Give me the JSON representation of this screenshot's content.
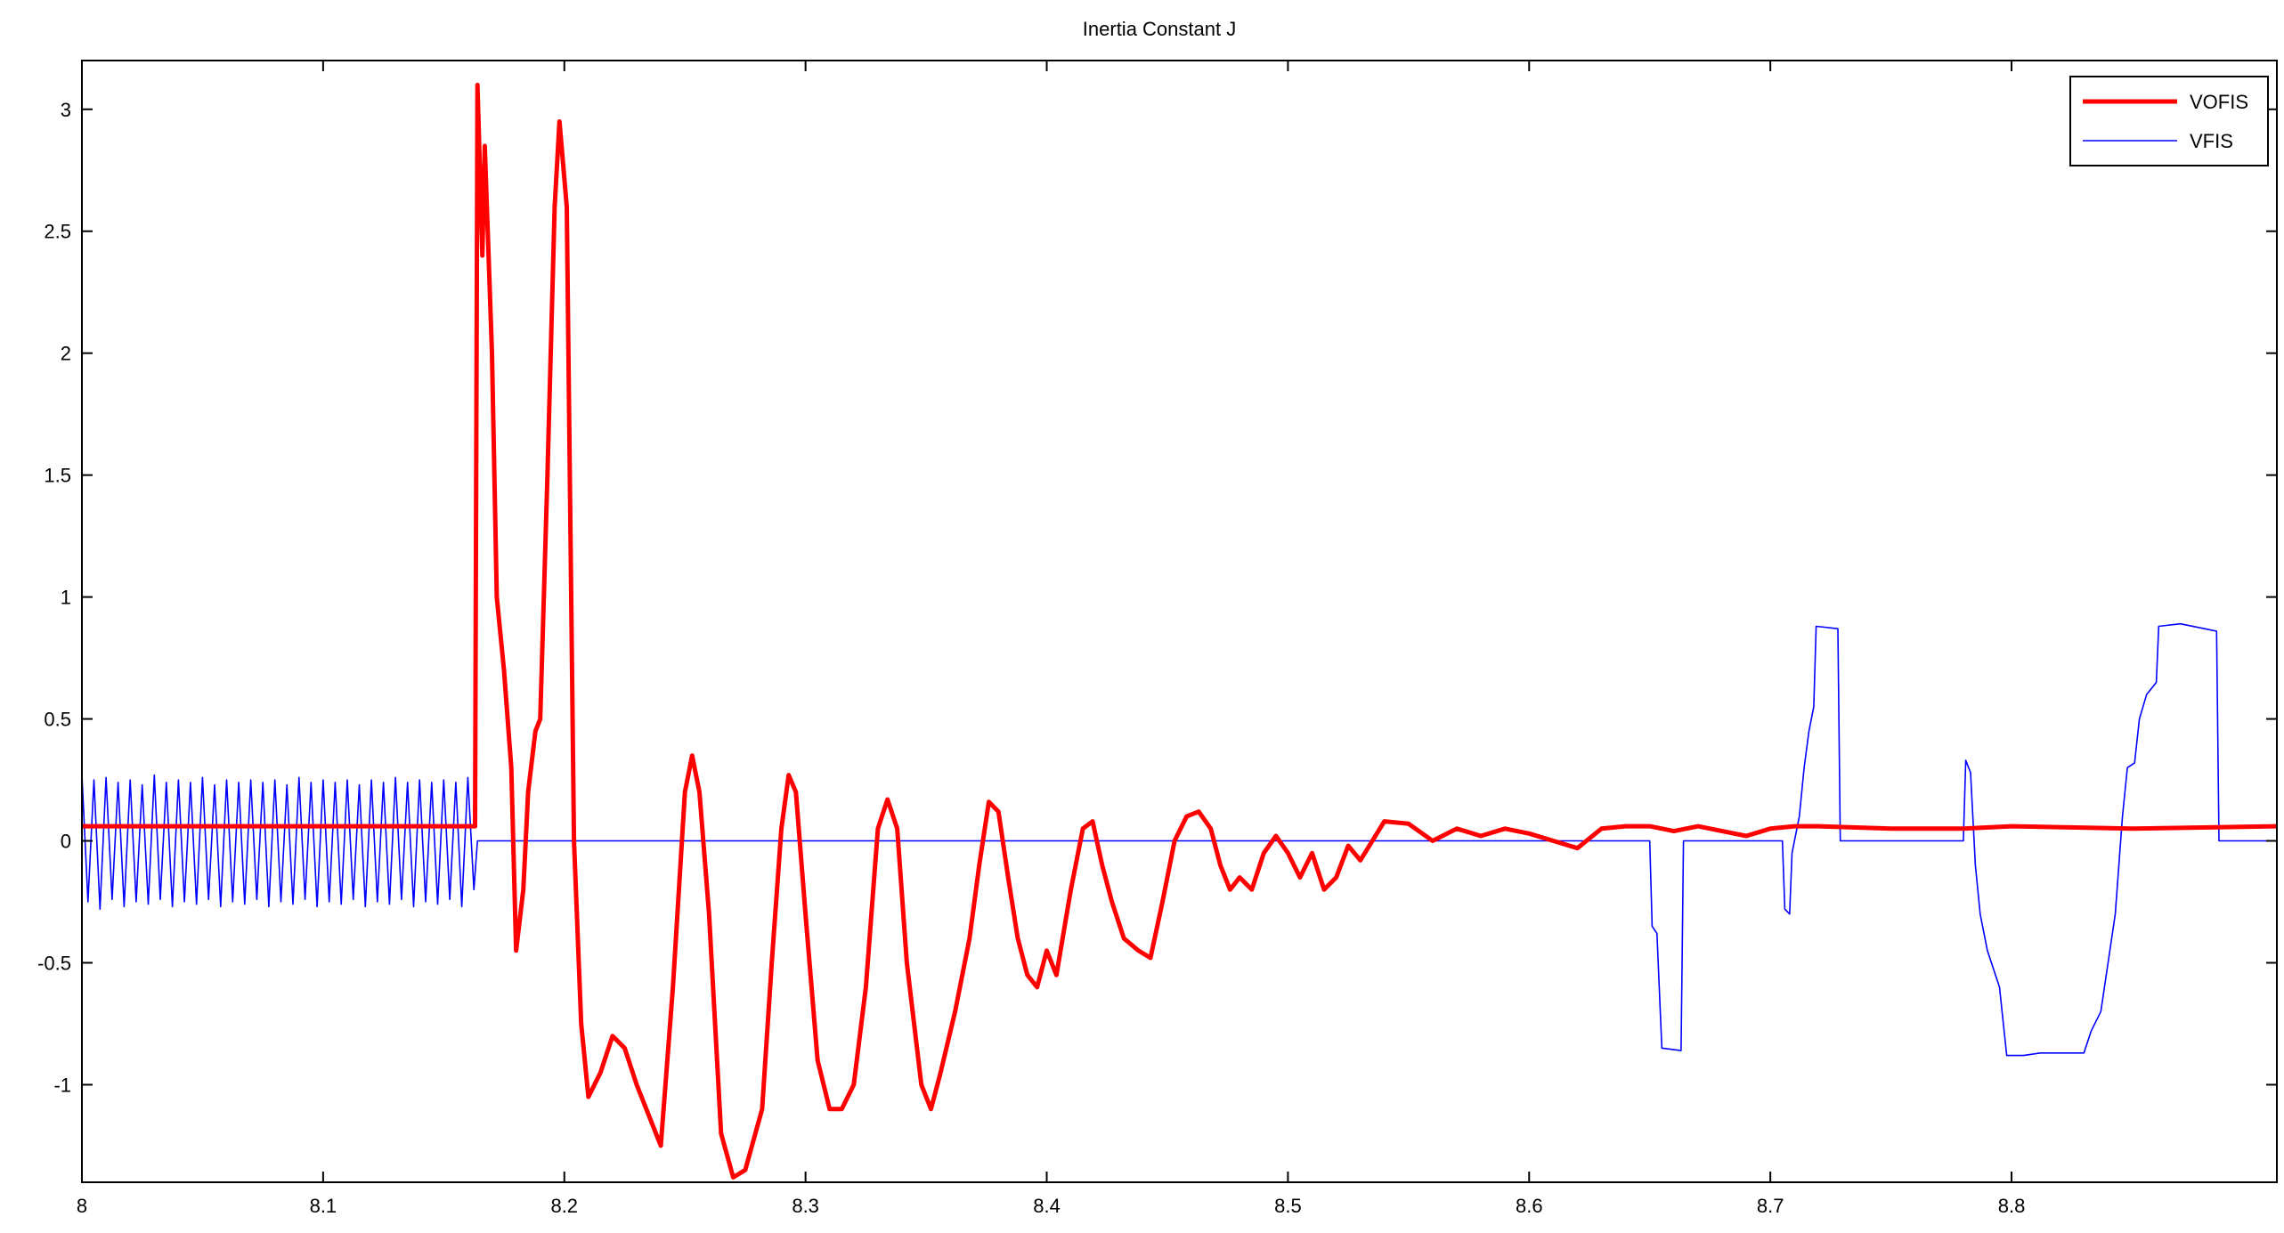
{
  "chart_data": {
    "type": "line",
    "title": "Inertia Constant J",
    "xlabel": "",
    "ylabel": "",
    "xlim": [
      8.0,
      8.91
    ],
    "ylim": [
      -1.4,
      3.2
    ],
    "grid": false,
    "legend_position": "top-right",
    "x_ticks": [
      8.0,
      8.1,
      8.2,
      8.3,
      8.4,
      8.5,
      8.6,
      8.7,
      8.8
    ],
    "x_tick_labels": [
      "8",
      "8.1",
      "8.2",
      "8.3",
      "8.4",
      "8.5",
      "8.6",
      "8.7",
      "8.8"
    ],
    "y_ticks": [
      -1,
      -0.5,
      0,
      0.5,
      1,
      1.5,
      2,
      2.5,
      3
    ],
    "y_tick_labels": [
      "-1",
      "-0.5",
      "0",
      "0.5",
      "1",
      "1.5",
      "2",
      "2.5",
      "3"
    ],
    "series": [
      {
        "name": "VOFIS",
        "color": "#ff0000",
        "points": [
          [
            8.0,
            0.06
          ],
          [
            8.163,
            0.06
          ],
          [
            8.164,
            3.1
          ],
          [
            8.166,
            2.4
          ],
          [
            8.167,
            2.85
          ],
          [
            8.17,
            2.0
          ],
          [
            8.172,
            1.0
          ],
          [
            8.175,
            0.7
          ],
          [
            8.178,
            0.3
          ],
          [
            8.18,
            -0.45
          ],
          [
            8.183,
            -0.2
          ],
          [
            8.185,
            0.2
          ],
          [
            8.188,
            0.45
          ],
          [
            8.19,
            0.5
          ],
          [
            8.193,
            1.5
          ],
          [
            8.196,
            2.6
          ],
          [
            8.198,
            2.95
          ],
          [
            8.201,
            2.6
          ],
          [
            8.204,
            0.0
          ],
          [
            8.207,
            -0.75
          ],
          [
            8.21,
            -1.05
          ],
          [
            8.215,
            -0.95
          ],
          [
            8.22,
            -0.8
          ],
          [
            8.225,
            -0.85
          ],
          [
            8.23,
            -1.0
          ],
          [
            8.24,
            -1.25
          ],
          [
            8.245,
            -0.6
          ],
          [
            8.25,
            0.2
          ],
          [
            8.253,
            0.35
          ],
          [
            8.256,
            0.2
          ],
          [
            8.26,
            -0.3
          ],
          [
            8.265,
            -1.2
          ],
          [
            8.27,
            -1.38
          ],
          [
            8.275,
            -1.35
          ],
          [
            8.282,
            -1.1
          ],
          [
            8.286,
            -0.5
          ],
          [
            8.29,
            0.05
          ],
          [
            8.293,
            0.27
          ],
          [
            8.296,
            0.2
          ],
          [
            8.3,
            -0.3
          ],
          [
            8.305,
            -0.9
          ],
          [
            8.31,
            -1.1
          ],
          [
            8.315,
            -1.1
          ],
          [
            8.32,
            -1.0
          ],
          [
            8.325,
            -0.6
          ],
          [
            8.33,
            0.05
          ],
          [
            8.334,
            0.17
          ],
          [
            8.338,
            0.05
          ],
          [
            8.342,
            -0.5
          ],
          [
            8.348,
            -1.0
          ],
          [
            8.352,
            -1.1
          ],
          [
            8.356,
            -0.95
          ],
          [
            8.362,
            -0.7
          ],
          [
            8.368,
            -0.4
          ],
          [
            8.372,
            -0.1
          ],
          [
            8.376,
            0.16
          ],
          [
            8.38,
            0.12
          ],
          [
            8.384,
            -0.15
          ],
          [
            8.388,
            -0.4
          ],
          [
            8.392,
            -0.55
          ],
          [
            8.396,
            -0.6
          ],
          [
            8.4,
            -0.45
          ],
          [
            8.404,
            -0.55
          ],
          [
            8.41,
            -0.2
          ],
          [
            8.415,
            0.05
          ],
          [
            8.419,
            0.08
          ],
          [
            8.423,
            -0.1
          ],
          [
            8.427,
            -0.25
          ],
          [
            8.432,
            -0.4
          ],
          [
            8.438,
            -0.45
          ],
          [
            8.443,
            -0.48
          ],
          [
            8.448,
            -0.25
          ],
          [
            8.453,
            0.0
          ],
          [
            8.458,
            0.1
          ],
          [
            8.463,
            0.12
          ],
          [
            8.468,
            0.05
          ],
          [
            8.472,
            -0.1
          ],
          [
            8.476,
            -0.2
          ],
          [
            8.48,
            -0.15
          ],
          [
            8.485,
            -0.2
          ],
          [
            8.49,
            -0.05
          ],
          [
            8.495,
            0.02
          ],
          [
            8.5,
            -0.05
          ],
          [
            8.505,
            -0.15
          ],
          [
            8.51,
            -0.05
          ],
          [
            8.515,
            -0.2
          ],
          [
            8.52,
            -0.15
          ],
          [
            8.525,
            -0.02
          ],
          [
            8.53,
            -0.08
          ],
          [
            8.54,
            0.08
          ],
          [
            8.55,
            0.07
          ],
          [
            8.56,
            0.0
          ],
          [
            8.57,
            0.05
          ],
          [
            8.58,
            0.02
          ],
          [
            8.59,
            0.05
          ],
          [
            8.6,
            0.03
          ],
          [
            8.61,
            0.0
          ],
          [
            8.62,
            -0.03
          ],
          [
            8.63,
            0.05
          ],
          [
            8.64,
            0.06
          ],
          [
            8.65,
            0.06
          ],
          [
            8.66,
            0.04
          ],
          [
            8.67,
            0.06
          ],
          [
            8.68,
            0.04
          ],
          [
            8.69,
            0.02
          ],
          [
            8.7,
            0.05
          ],
          [
            8.71,
            0.06
          ],
          [
            8.72,
            0.06
          ],
          [
            8.75,
            0.05
          ],
          [
            8.78,
            0.05
          ],
          [
            8.8,
            0.06
          ],
          [
            8.85,
            0.05
          ],
          [
            8.91,
            0.06
          ]
        ]
      },
      {
        "name": "VFIS",
        "color": "#0000ff",
        "points": [
          [
            8.0,
            0.27
          ],
          [
            8.0025,
            -0.25
          ],
          [
            8.005,
            0.25
          ],
          [
            8.0075,
            -0.28
          ],
          [
            8.01,
            0.26
          ],
          [
            8.0125,
            -0.24
          ],
          [
            8.015,
            0.24
          ],
          [
            8.0175,
            -0.27
          ],
          [
            8.02,
            0.25
          ],
          [
            8.0225,
            -0.25
          ],
          [
            8.025,
            0.23
          ],
          [
            8.0275,
            -0.26
          ],
          [
            8.03,
            0.27
          ],
          [
            8.0325,
            -0.24
          ],
          [
            8.035,
            0.24
          ],
          [
            8.0375,
            -0.27
          ],
          [
            8.04,
            0.25
          ],
          [
            8.0425,
            -0.25
          ],
          [
            8.045,
            0.24
          ],
          [
            8.0475,
            -0.26
          ],
          [
            8.05,
            0.26
          ],
          [
            8.0525,
            -0.24
          ],
          [
            8.055,
            0.23
          ],
          [
            8.0575,
            -0.27
          ],
          [
            8.06,
            0.25
          ],
          [
            8.0625,
            -0.25
          ],
          [
            8.065,
            0.24
          ],
          [
            8.0675,
            -0.26
          ],
          [
            8.07,
            0.25
          ],
          [
            8.0725,
            -0.24
          ],
          [
            8.075,
            0.24
          ],
          [
            8.0775,
            -0.27
          ],
          [
            8.08,
            0.25
          ],
          [
            8.0825,
            -0.25
          ],
          [
            8.085,
            0.23
          ],
          [
            8.0875,
            -0.26
          ],
          [
            8.09,
            0.26
          ],
          [
            8.0925,
            -0.24
          ],
          [
            8.095,
            0.24
          ],
          [
            8.0975,
            -0.27
          ],
          [
            8.1,
            0.25
          ],
          [
            8.1025,
            -0.25
          ],
          [
            8.105,
            0.24
          ],
          [
            8.1075,
            -0.26
          ],
          [
            8.11,
            0.25
          ],
          [
            8.1125,
            -0.24
          ],
          [
            8.115,
            0.23
          ],
          [
            8.1175,
            -0.27
          ],
          [
            8.12,
            0.25
          ],
          [
            8.1225,
            -0.25
          ],
          [
            8.125,
            0.24
          ],
          [
            8.1275,
            -0.26
          ],
          [
            8.13,
            0.26
          ],
          [
            8.1325,
            -0.24
          ],
          [
            8.135,
            0.24
          ],
          [
            8.1375,
            -0.27
          ],
          [
            8.14,
            0.25
          ],
          [
            8.1425,
            -0.25
          ],
          [
            8.145,
            0.24
          ],
          [
            8.1475,
            -0.26
          ],
          [
            8.15,
            0.25
          ],
          [
            8.1525,
            -0.24
          ],
          [
            8.155,
            0.24
          ],
          [
            8.1575,
            -0.27
          ],
          [
            8.16,
            0.26
          ],
          [
            8.1625,
            -0.2
          ],
          [
            8.164,
            0.0
          ],
          [
            8.65,
            0.0
          ],
          [
            8.651,
            -0.35
          ],
          [
            8.653,
            -0.38
          ],
          [
            8.655,
            -0.85
          ],
          [
            8.663,
            -0.86
          ],
          [
            8.664,
            0.0
          ],
          [
            8.705,
            0.0
          ],
          [
            8.706,
            -0.28
          ],
          [
            8.708,
            -0.3
          ],
          [
            8.709,
            -0.05
          ],
          [
            8.712,
            0.1
          ],
          [
            8.714,
            0.3
          ],
          [
            8.716,
            0.45
          ],
          [
            8.718,
            0.55
          ],
          [
            8.719,
            0.88
          ],
          [
            8.728,
            0.87
          ],
          [
            8.729,
            0.0
          ],
          [
            8.78,
            0.0
          ],
          [
            8.781,
            0.33
          ],
          [
            8.783,
            0.28
          ],
          [
            8.785,
            -0.1
          ],
          [
            8.787,
            -0.3
          ],
          [
            8.79,
            -0.45
          ],
          [
            8.795,
            -0.6
          ],
          [
            8.798,
            -0.88
          ],
          [
            8.805,
            -0.88
          ],
          [
            8.812,
            -0.87
          ],
          [
            8.83,
            -0.87
          ],
          [
            8.833,
            -0.78
          ],
          [
            8.837,
            -0.7
          ],
          [
            8.84,
            -0.5
          ],
          [
            8.843,
            -0.3
          ],
          [
            8.846,
            0.1
          ],
          [
            8.848,
            0.3
          ],
          [
            8.851,
            0.32
          ],
          [
            8.853,
            0.5
          ],
          [
            8.856,
            0.6
          ],
          [
            8.86,
            0.65
          ],
          [
            8.861,
            0.88
          ],
          [
            8.87,
            0.89
          ],
          [
            8.88,
            0.87
          ],
          [
            8.885,
            0.86
          ],
          [
            8.886,
            0.0
          ],
          [
            8.91,
            0.0
          ]
        ]
      }
    ]
  }
}
